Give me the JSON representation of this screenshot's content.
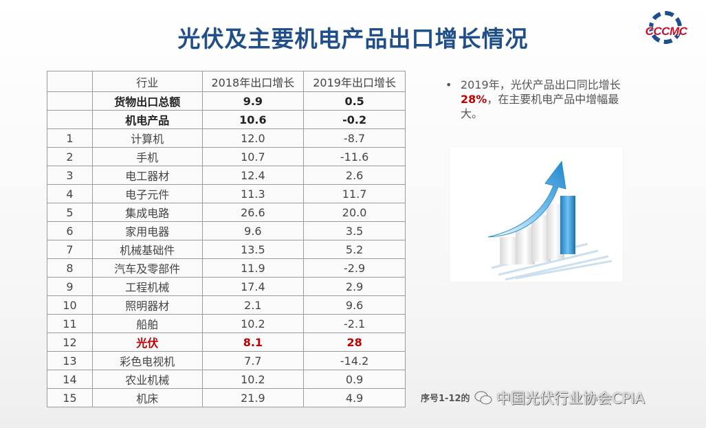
{
  "page": {
    "title": "光伏及主要机电产品出口增长情况",
    "logo_text": "CCCMC"
  },
  "table": {
    "headers": [
      "",
      "行业",
      "2018年出口增长",
      "2019年出口增长"
    ],
    "rows": [
      {
        "idx": "",
        "name": "货物出口总额",
        "y2018": "9.9",
        "y2019": "0.5",
        "style": "bold"
      },
      {
        "idx": "",
        "name": "机电产品",
        "y2018": "10.6",
        "y2019": "-0.2",
        "style": "bold"
      },
      {
        "idx": "1",
        "name": "计算机",
        "y2018": "12.0",
        "y2019": "-8.7",
        "style": ""
      },
      {
        "idx": "2",
        "name": "手机",
        "y2018": "10.7",
        "y2019": "-11.6",
        "style": ""
      },
      {
        "idx": "3",
        "name": "电工器材",
        "y2018": "12.4",
        "y2019": "2.6",
        "style": ""
      },
      {
        "idx": "4",
        "name": "电子元件",
        "y2018": "11.3",
        "y2019": "11.7",
        "style": ""
      },
      {
        "idx": "5",
        "name": "集成电路",
        "y2018": "26.6",
        "y2019": "20.0",
        "style": ""
      },
      {
        "idx": "6",
        "name": "家用电器",
        "y2018": "9.6",
        "y2019": "3.5",
        "style": ""
      },
      {
        "idx": "7",
        "name": "机械基础件",
        "y2018": "13.5",
        "y2019": "5.2",
        "style": ""
      },
      {
        "idx": "8",
        "name": "汽车及零部件",
        "y2018": "11.9",
        "y2019": "-2.9",
        "style": ""
      },
      {
        "idx": "9",
        "name": "工程机械",
        "y2018": "17.4",
        "y2019": "2.9",
        "style": ""
      },
      {
        "idx": "10",
        "name": "照明器材",
        "y2018": "2.1",
        "y2019": "9.6",
        "style": ""
      },
      {
        "idx": "11",
        "name": "船舶",
        "y2018": "10.2",
        "y2019": "-2.1",
        "style": ""
      },
      {
        "idx": "12",
        "name": "光伏",
        "y2018": "8.1",
        "y2019": "28",
        "style": "hl"
      },
      {
        "idx": "13",
        "name": "彩色电视机",
        "y2018": "7.7",
        "y2019": "-14.2",
        "style": ""
      },
      {
        "idx": "14",
        "name": "农业机械",
        "y2018": "10.2",
        "y2019": "0.9",
        "style": ""
      },
      {
        "idx": "15",
        "name": "机床",
        "y2018": "21.9",
        "y2019": "4.9",
        "style": ""
      }
    ]
  },
  "note": {
    "bullet": "•",
    "text_before": "2019年，光伏产品出口同比增长",
    "highlight": "28%",
    "text_after": "，在主要机电产品中增幅最大。"
  },
  "footnote": "序号1-12的",
  "watermark": "中国光伏行业协会CPIA",
  "colors": {
    "title": "#1f4f8b",
    "highlight": "#c00000",
    "logo_red": "#c8102e",
    "arrow_blue": "#2a8fd0"
  }
}
